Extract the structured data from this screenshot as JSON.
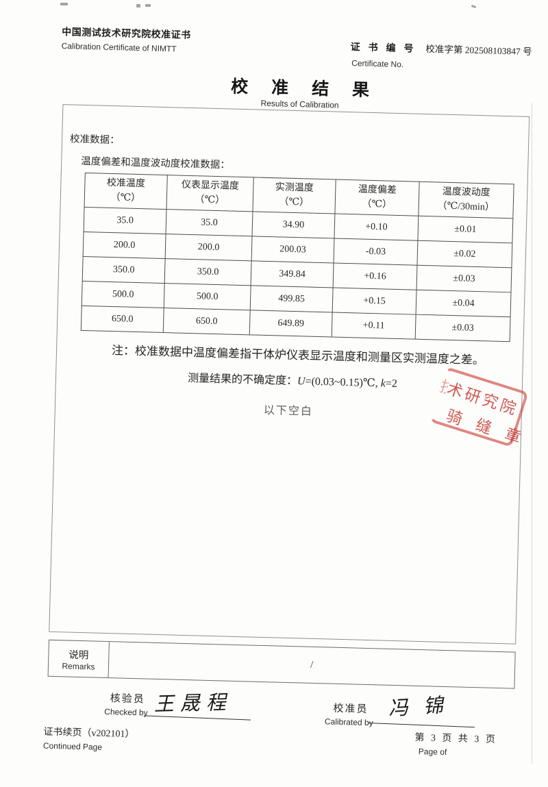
{
  "header": {
    "org_title_cn": "中国测试技术研究院校准证书",
    "org_title_en": "Calibration Certificate of NIMTT",
    "cert_no_label_cn": "证 书 编 号",
    "cert_no_value": "校准字第 202508103847 号",
    "cert_no_label_en": "Certificate No.",
    "title_cn": "校准结果",
    "title_en": "Results of Calibration"
  },
  "content": {
    "section_label": "校准数据：",
    "table_caption": "温度偏差和温度波动度校准数据：",
    "note1": "注：校准数据中温度偏差指干体炉仪表显示温度和测量区实测温度之差。",
    "note2_prefix": "测量结果的不确定度：",
    "note2_u": "U",
    "note2_mid": "=(0.03~0.15)℃, ",
    "note2_k": "k",
    "note2_suffix": "=2",
    "blank_below": "以下空白"
  },
  "table": {
    "columns": [
      {
        "name": "校准温度",
        "unit": "（℃）"
      },
      {
        "name": "仪表显示温度",
        "unit": "（℃）"
      },
      {
        "name": "实测温度",
        "unit": "（℃）"
      },
      {
        "name": "温度偏差",
        "unit": "（℃）"
      },
      {
        "name": "温度波动度",
        "unit": "（℃/30min）"
      }
    ],
    "rows": [
      [
        "35.0",
        "35.0",
        "34.90",
        "+0.10",
        "±0.01"
      ],
      [
        "200.0",
        "200.0",
        "200.03",
        "-0.03",
        "±0.02"
      ],
      [
        "350.0",
        "350.0",
        "349.84",
        "+0.16",
        "±0.03"
      ],
      [
        "500.0",
        "500.0",
        "499.85",
        "+0.15",
        "±0.04"
      ],
      [
        "650.0",
        "650.0",
        "649.89",
        "+0.11",
        "±0.03"
      ]
    ]
  },
  "stamp": {
    "line1_partial": "技",
    "line1": "术研究院",
    "line2": "骑 缝 章",
    "color": "#c4342d"
  },
  "remarks": {
    "label_cn": "说明",
    "label_en": "Remarks",
    "value": "/"
  },
  "signatures": {
    "checked_label_cn": "核验员",
    "checked_label_en": "Checked by",
    "checked_name": "王晟程",
    "calibrated_label_cn": "校准员",
    "calibrated_label_en": "Calibrated by",
    "calibrated_name": "冯锦"
  },
  "footer": {
    "continued_cn": "证书续页（v202101）",
    "continued_en": "Continued Page",
    "page_cn": "第 3 页 共 3 页",
    "page_en": "Page of"
  }
}
